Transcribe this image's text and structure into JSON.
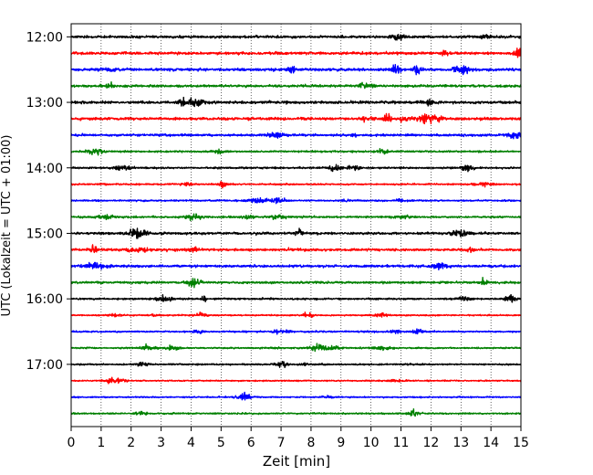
{
  "chart_data": {
    "type": "line",
    "title": "",
    "xlabel": "Zeit  [min]",
    "ylabel": "UTC (Lokalzeit = UTC + 01:00)",
    "xlim": [
      0,
      15
    ],
    "x_ticks": [
      0,
      1,
      2,
      3,
      4,
      5,
      6,
      7,
      8,
      9,
      10,
      11,
      12,
      13,
      14,
      15
    ],
    "x_tick_labels": [
      "0",
      "1",
      "2",
      "3",
      "4",
      "5",
      "6",
      "7",
      "8",
      "9",
      "10",
      "11",
      "12",
      "13",
      "14",
      "15"
    ],
    "ylim": [
      "11:48",
      "17:57"
    ],
    "y_ticks": [
      "12:00",
      "13:00",
      "14:00",
      "15:00",
      "16:00",
      "17:00"
    ],
    "grid": "vertical-dotted",
    "trace_colors": [
      "#000000",
      "#ff0000",
      "#0000ff",
      "#008000"
    ],
    "traces": [
      {
        "start": "12:00",
        "color": "#000000",
        "amplitude": 0.55
      },
      {
        "start": "12:15",
        "color": "#ff0000",
        "amplitude": 0.6
      },
      {
        "start": "12:30",
        "color": "#0000ff",
        "amplitude": 0.6
      },
      {
        "start": "12:45",
        "color": "#008000",
        "amplitude": 0.55
      },
      {
        "start": "13:00",
        "color": "#000000",
        "amplitude": 0.6
      },
      {
        "start": "13:15",
        "color": "#ff0000",
        "amplitude": 0.6
      },
      {
        "start": "13:30",
        "color": "#0000ff",
        "amplitude": 0.55
      },
      {
        "start": "13:45",
        "color": "#008000",
        "amplitude": 0.4
      },
      {
        "start": "14:00",
        "color": "#000000",
        "amplitude": 0.4
      },
      {
        "start": "14:15",
        "color": "#ff0000",
        "amplitude": 0.35
      },
      {
        "start": "14:30",
        "color": "#0000ff",
        "amplitude": 0.35
      },
      {
        "start": "14:45",
        "color": "#008000",
        "amplitude": 0.4
      },
      {
        "start": "15:00",
        "color": "#000000",
        "amplitude": 0.55
      },
      {
        "start": "15:15",
        "color": "#ff0000",
        "amplitude": 0.55
      },
      {
        "start": "15:30",
        "color": "#0000ff",
        "amplitude": 0.55
      },
      {
        "start": "15:45",
        "color": "#008000",
        "amplitude": 0.5
      },
      {
        "start": "16:00",
        "color": "#000000",
        "amplitude": 0.4
      },
      {
        "start": "16:15",
        "color": "#ff0000",
        "amplitude": 0.3
      },
      {
        "start": "16:30",
        "color": "#0000ff",
        "amplitude": 0.35
      },
      {
        "start": "16:45",
        "color": "#008000",
        "amplitude": 0.35
      },
      {
        "start": "17:00",
        "color": "#000000",
        "amplitude": 0.35
      },
      {
        "start": "17:15",
        "color": "#ff0000",
        "amplitude": 0.3
      },
      {
        "start": "17:30",
        "color": "#0000ff",
        "amplitude": 0.3
      },
      {
        "start": "17:45",
        "color": "#008000",
        "amplitude": 0.35
      }
    ]
  }
}
